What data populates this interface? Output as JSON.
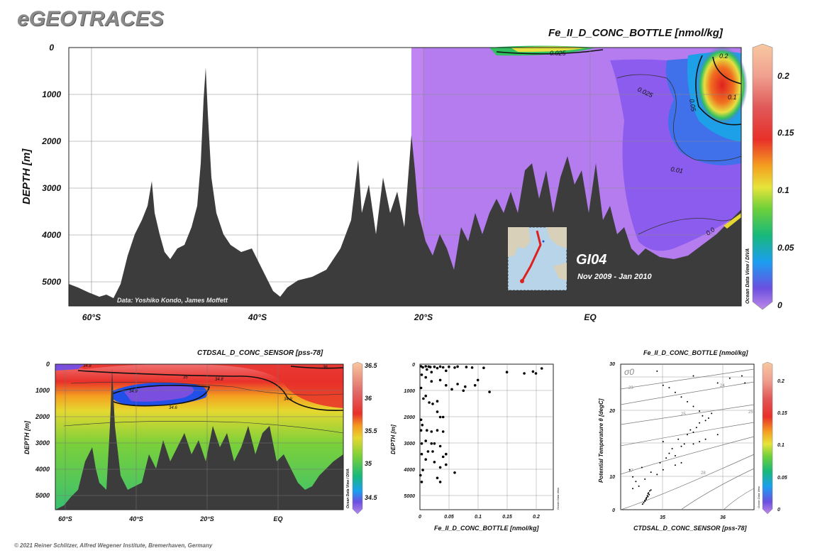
{
  "brand": "eGEOTRACES",
  "footer": "© 2021 Reiner Schlitzer, Alfred Wegener Institute, Bremerhaven, Germany",
  "colorscale": [
    "#b48ae8",
    "#6b4fe0",
    "#1b9ef0",
    "#18b87a",
    "#6fd03a",
    "#e6e43a",
    "#f4a020",
    "#e8302a",
    "#e05858",
    "#f0a090",
    "#f8c8a0"
  ],
  "chart_data": [
    {
      "type": "heatmap",
      "title": "Fe_II_D_CONC_BOTTLE [nmol/kg]",
      "ylabel": "DEPTH [m]",
      "xlabel": "",
      "xticks": [
        "60°S",
        "40°S",
        "20°S",
        "EQ"
      ],
      "yticks": [
        "0",
        "1000",
        "2000",
        "3000",
        "4000",
        "5000"
      ],
      "ylim": [
        0,
        5500
      ],
      "colorbar": {
        "label": "Ocean Data View / DIVA",
        "ticks": [
          "0",
          "0.05",
          "0.1",
          "0.15",
          "0.2"
        ],
        "range": [
          0,
          0.22
        ]
      },
      "contour_labels": [
        "0.025",
        "0.025",
        "0.05",
        "0.1",
        "0.2",
        "0.025",
        "0.01",
        "0.0"
      ],
      "annotations": {
        "credit": "Data: Yoshiko Kondo, James Moffett",
        "cruise": "GI04",
        "dates": "Nov 2009 - Jan 2010"
      }
    },
    {
      "type": "heatmap",
      "title": "CTDSAL_D_CONC_SENSOR [pss-78]",
      "ylabel": "DEPTH [m]",
      "xticks": [
        "60°S",
        "40°S",
        "20°S",
        "EQ"
      ],
      "yticks": [
        "0",
        "1000",
        "2000",
        "3000",
        "4000",
        "5000"
      ],
      "ylim": [
        0,
        5500
      ],
      "colorbar": {
        "label": "Ocean Data View / DIVA",
        "ticks": [
          "34.5",
          "35",
          "35.5",
          "36",
          "36.5"
        ],
        "range": [
          34.4,
          36.6
        ]
      },
      "contour_labels": [
        "34.8",
        "35",
        "34.8",
        "36",
        "34.9",
        "34.6",
        "34.9"
      ]
    },
    {
      "type": "scatter",
      "xlabel": "Fe_II_D_CONC_BOTTLE [nmol/kg]",
      "ylabel": "DEPTH [m]",
      "xticks": [
        "0",
        "0.05",
        "0.1",
        "0.15",
        "0.2"
      ],
      "yticks": [
        "0",
        "1000",
        "2000",
        "3000",
        "4000",
        "5000"
      ],
      "xlim": [
        0,
        0.23
      ],
      "ylim": [
        0,
        5500
      ],
      "side_label": "Ocean Data View",
      "points": [
        [
          0.002,
          80
        ],
        [
          0.005,
          120
        ],
        [
          0.01,
          80
        ],
        [
          0.012,
          200
        ],
        [
          0.015,
          90
        ],
        [
          0.018,
          110
        ],
        [
          0.02,
          300
        ],
        [
          0.025,
          100
        ],
        [
          0.03,
          150
        ],
        [
          0.035,
          90
        ],
        [
          0.04,
          120
        ],
        [
          0.045,
          250
        ],
        [
          0.05,
          100
        ],
        [
          0.06,
          130
        ],
        [
          0.065,
          90
        ],
        [
          0.08,
          110
        ],
        [
          0.09,
          130
        ],
        [
          0.11,
          140
        ],
        [
          0.15,
          300
        ],
        [
          0.18,
          350
        ],
        [
          0.195,
          280
        ],
        [
          0.2,
          350
        ],
        [
          0.21,
          160
        ],
        [
          0.003,
          400
        ],
        [
          0.01,
          500
        ],
        [
          0.02,
          650
        ],
        [
          0.035,
          600
        ],
        [
          0.045,
          800
        ],
        [
          0.055,
          950
        ],
        [
          0.065,
          750
        ],
        [
          0.075,
          1000
        ],
        [
          0.078,
          850
        ],
        [
          0.095,
          800
        ],
        [
          0.1,
          600
        ],
        [
          0.12,
          1050
        ],
        [
          0.002,
          900
        ],
        [
          0.006,
          1300
        ],
        [
          0.01,
          1200
        ],
        [
          0.016,
          1450
        ],
        [
          0.022,
          1500
        ],
        [
          0.03,
          1400
        ],
        [
          0.03,
          1800
        ],
        [
          0.035,
          2000
        ],
        [
          0.04,
          2000
        ],
        [
          0.002,
          2100
        ],
        [
          0.004,
          2300
        ],
        [
          0.002,
          2500
        ],
        [
          0.012,
          2500
        ],
        [
          0.02,
          2550
        ],
        [
          0.03,
          2500
        ],
        [
          0.04,
          2550
        ],
        [
          0.003,
          3000
        ],
        [
          0.01,
          2900
        ],
        [
          0.02,
          3000
        ],
        [
          0.025,
          3000
        ],
        [
          0.035,
          3100
        ],
        [
          0.003,
          3400
        ],
        [
          0.014,
          3300
        ],
        [
          0.022,
          3300
        ],
        [
          0.04,
          3500
        ],
        [
          0.045,
          3400
        ],
        [
          0.01,
          3600
        ],
        [
          0.025,
          3700
        ],
        [
          0.035,
          3900
        ],
        [
          0.005,
          4000
        ],
        [
          0.03,
          4300
        ],
        [
          0.035,
          4450
        ],
        [
          0.045,
          3800
        ],
        [
          0.06,
          4100
        ],
        [
          0.001,
          4200
        ],
        [
          0.003,
          4450
        ]
      ]
    },
    {
      "type": "scatter",
      "title": "Fe_II_D_CONC_BOTTLE [nmol/kg]",
      "xlabel": "CTDSAL_D_CONC_SENSOR [pss-78]",
      "ylabel": "Potential Temperature θ [degC]",
      "xticks": [
        "35",
        "36"
      ],
      "yticks": [
        "0",
        "10",
        "20",
        "30"
      ],
      "xlim": [
        34.3,
        36.5
      ],
      "ylim": [
        -1,
        30
      ],
      "isopycnal_label": "σ0",
      "isopycnals": [
        "23",
        "24",
        "25",
        "25",
        "27",
        "28"
      ],
      "colorbar": {
        "label": "Ocean Data View",
        "ticks": [
          "0",
          "0.05",
          "0.1",
          "0.15",
          "0.2"
        ],
        "range": [
          0,
          0.22
        ]
      },
      "points": [
        [
          34.7,
          0.8
        ],
        [
          34.72,
          1.2
        ],
        [
          34.73,
          1.6
        ],
        [
          34.74,
          2.0
        ],
        [
          34.75,
          2.4
        ],
        [
          34.76,
          2.6
        ],
        [
          34.78,
          3.0
        ],
        [
          34.8,
          3.2
        ],
        [
          34.7,
          1.0
        ],
        [
          34.72,
          1.4
        ],
        [
          34.68,
          0.5
        ],
        [
          34.66,
          0.2
        ],
        [
          34.75,
          1.8
        ],
        [
          34.77,
          2.2
        ],
        [
          34.5,
          3.5
        ],
        [
          34.6,
          4.0
        ],
        [
          34.55,
          5.0
        ],
        [
          34.7,
          5.5
        ],
        [
          34.5,
          6.0
        ],
        [
          34.45,
          7.5
        ],
        [
          34.65,
          8.0
        ],
        [
          34.8,
          7.0
        ],
        [
          34.9,
          6.5
        ],
        [
          35.0,
          7.5
        ],
        [
          34.95,
          9.0
        ],
        [
          35.05,
          10.0
        ],
        [
          35.1,
          11.0
        ],
        [
          35.2,
          10.5
        ],
        [
          35.15,
          12.0
        ],
        [
          35.3,
          12.5
        ],
        [
          35.35,
          13.0
        ],
        [
          35.25,
          14.0
        ],
        [
          35.4,
          15.0
        ],
        [
          35.5,
          15.5
        ],
        [
          35.45,
          16.0
        ],
        [
          35.55,
          16.5
        ],
        [
          35.6,
          17.5
        ],
        [
          35.7,
          18.0
        ],
        [
          35.65,
          19.0
        ],
        [
          35.6,
          20.0
        ],
        [
          35.5,
          21.0
        ],
        [
          35.4,
          22.0
        ],
        [
          35.3,
          23.0
        ],
        [
          35.2,
          24.0
        ],
        [
          35.1,
          25.0
        ],
        [
          35.0,
          25.5
        ],
        [
          35.8,
          19.5
        ],
        [
          35.75,
          18.5
        ],
        [
          35.9,
          15.0
        ],
        [
          35.7,
          14.0
        ],
        [
          35.6,
          13.5
        ],
        [
          35.5,
          13.0
        ],
        [
          35.0,
          13.5
        ],
        [
          35.2,
          8.5
        ],
        [
          35.3,
          9.0
        ],
        [
          35.9,
          26.0
        ],
        [
          36.1,
          27.0
        ],
        [
          36.3,
          27.5
        ],
        [
          36.35,
          26.0
        ],
        [
          35.5,
          27.5
        ],
        [
          34.9,
          28.5
        ]
      ]
    }
  ]
}
